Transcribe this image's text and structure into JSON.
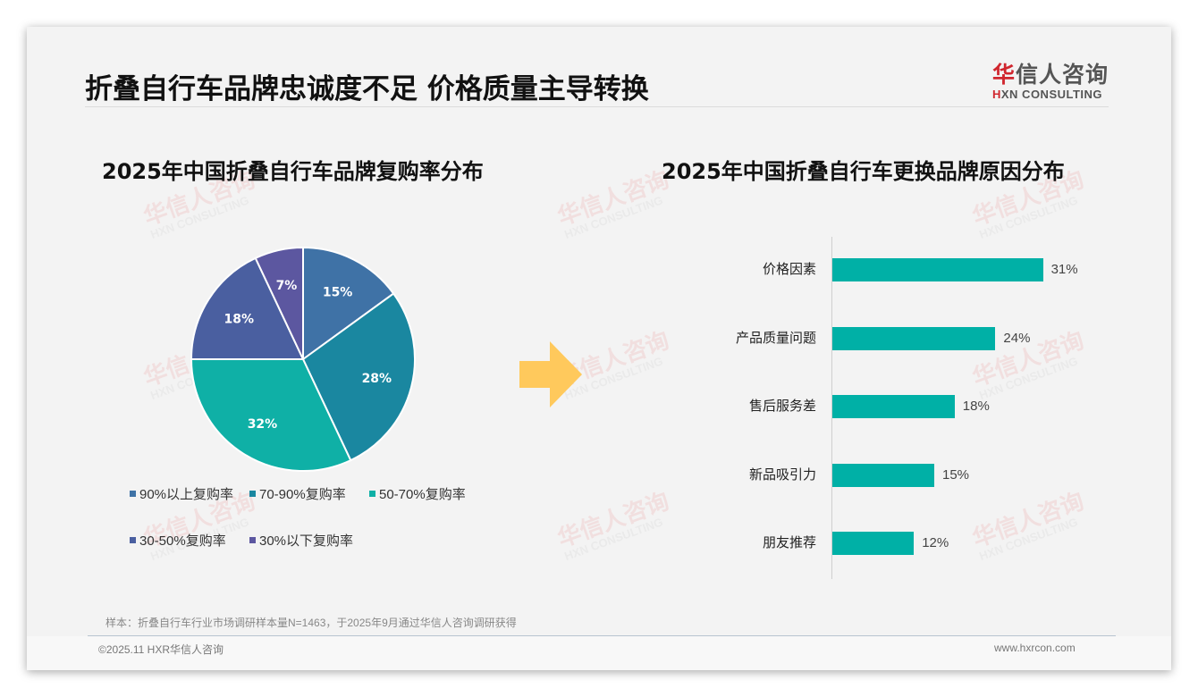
{
  "header": {
    "title": "折叠自行车品牌忠诚度不足 价格质量主导转换",
    "logo_cn_first": "华",
    "logo_cn_rest": "信人咨询",
    "logo_en_first": "H",
    "logo_en_rest": "XN CONSULTING"
  },
  "watermark": {
    "cn": "华信人咨询",
    "en": "HXN CONSULTING"
  },
  "colors": {
    "background": "#f3f3f3",
    "bar": "#00b0a6",
    "arrow": "#ffc95c",
    "logo_red": "#d0262e"
  },
  "chart_data": [
    {
      "type": "pie",
      "title": "2025年中国折叠自行车品牌复购率分布",
      "categories": [
        "90%以上复购率",
        "70-90%复购率",
        "50-70%复购率",
        "30-50%复购率",
        "30%以下复购率"
      ],
      "values": [
        15,
        28,
        32,
        18,
        7
      ],
      "labels": [
        "15%",
        "28%",
        "32%",
        "18%",
        "7%"
      ],
      "colors": [
        "#3f72a6",
        "#1a87a0",
        "#0fb0a6",
        "#4a5fa0",
        "#5c57a0"
      ],
      "legend_position": "bottom",
      "unit": "%"
    },
    {
      "type": "bar",
      "orientation": "horizontal",
      "title": "2025年中国折叠自行车更换品牌原因分布",
      "categories": [
        "价格因素",
        "产品质量问题",
        "售后服务差",
        "新品吸引力",
        "朋友推荐"
      ],
      "values": [
        31,
        24,
        18,
        15,
        12
      ],
      "labels": [
        "31%",
        "24%",
        "18%",
        "15%",
        "12%"
      ],
      "color": "#00b0a6",
      "xlabel": "",
      "ylabel": "",
      "grid": false,
      "unit": "%"
    }
  ],
  "footer": {
    "sample_note": "样本：折叠自行车行业市场调研样本量N=1463，于2025年9月通过华信人咨询调研获得",
    "copyright": "©2025.11 HXR华信人咨询",
    "website": "www.hxrcon.com"
  }
}
